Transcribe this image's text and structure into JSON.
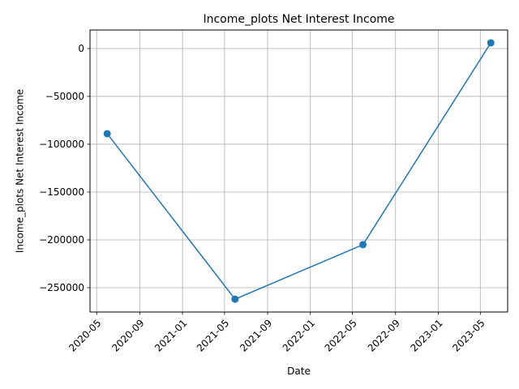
{
  "chart_data": {
    "type": "line",
    "title": "Income_plots Net Interest Income",
    "xlabel": "Date",
    "ylabel": "Income_plots Net Interest Income",
    "x": [
      "2020-05-31",
      "2021-05-31",
      "2022-05-31",
      "2023-05-31"
    ],
    "series": [
      {
        "values": [
          -89000,
          -262000,
          -205000,
          6000
        ]
      }
    ],
    "x_ticks": [
      "2020-05",
      "2020-09",
      "2021-01",
      "2021-05",
      "2021-09",
      "2022-01",
      "2022-05",
      "2022-09",
      "2023-01",
      "2023-05"
    ],
    "y_ticks": [
      0,
      -50000,
      -100000,
      -150000,
      -200000,
      -250000
    ],
    "xlim": [
      "2020-04-12",
      "2023-07-18"
    ],
    "ylim": [
      -275400,
      19400
    ],
    "grid": true,
    "line_color": "#1f77b4",
    "marker": "circle"
  }
}
